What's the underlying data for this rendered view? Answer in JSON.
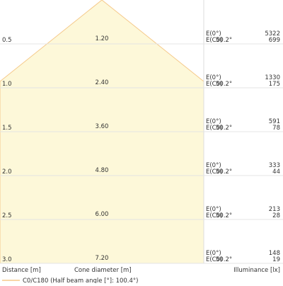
{
  "rows": [
    {
      "distance": "0.5",
      "diameter": "1.20",
      "e0_label": "E(0°)",
      "ec0_label": "E(C0)",
      "angle": "50.2°",
      "e0": "5322",
      "ec0": "699"
    },
    {
      "distance": "1.0",
      "diameter": "2.40",
      "e0_label": "E(0°)",
      "ec0_label": "E(C0)",
      "angle": "50.2°",
      "e0": "1330",
      "ec0": "175"
    },
    {
      "distance": "1.5",
      "diameter": "3.60",
      "e0_label": "E(0°)",
      "ec0_label": "E(C0)",
      "angle": "50.2°",
      "e0": "591",
      "ec0": "78"
    },
    {
      "distance": "2.0",
      "diameter": "4.80",
      "e0_label": "E(0°)",
      "ec0_label": "E(C0)",
      "angle": "50.2°",
      "e0": "333",
      "ec0": "44"
    },
    {
      "distance": "2.5",
      "diameter": "6.00",
      "e0_label": "E(0°)",
      "ec0_label": "E(C0)",
      "angle": "50.2°",
      "e0": "213",
      "ec0": "28"
    },
    {
      "distance": "3.0",
      "diameter": "7.20",
      "e0_label": "E(0°)",
      "ec0_label": "E(C0)",
      "angle": "50.2°",
      "e0": "148",
      "ec0": "19"
    }
  ],
  "footer": {
    "distance_label": "Distance [m]",
    "diameter_label": "Cone diameter [m]",
    "illuminance_label": "Illuminance [lx]"
  },
  "legend": {
    "label": "C0/C180 (Half beam angle [°]: 100.4°)"
  }
}
